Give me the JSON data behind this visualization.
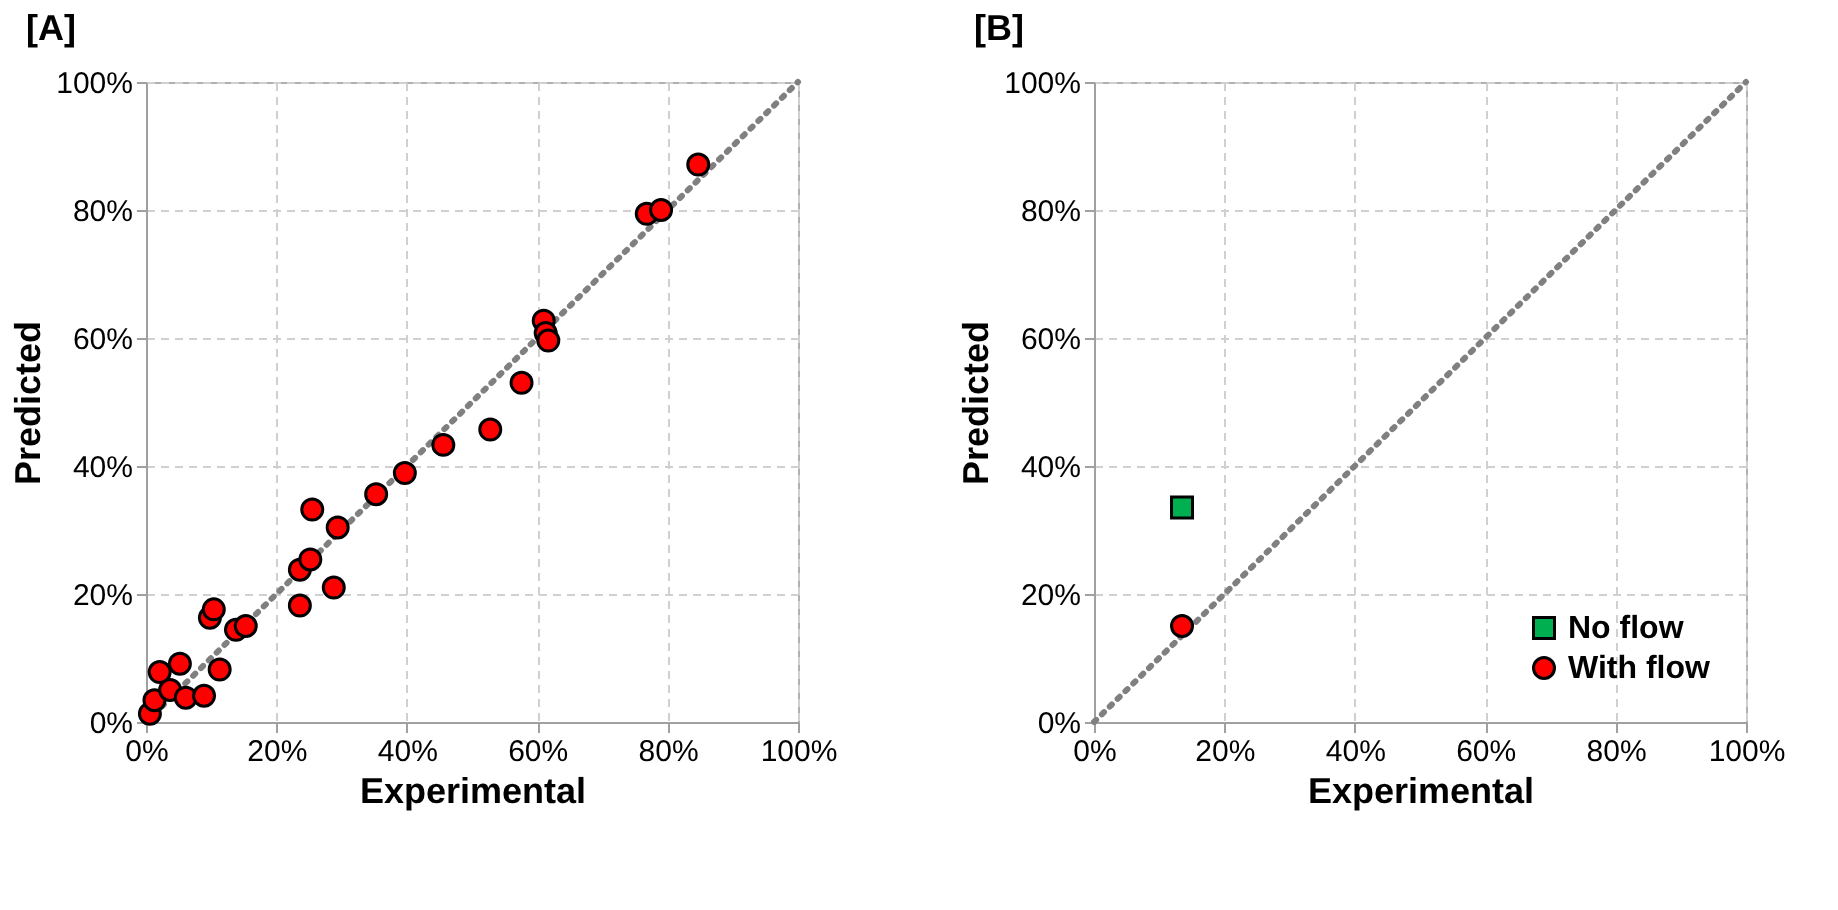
{
  "chart_data": [
    {
      "type": "scatter",
      "title": "[A]",
      "xlabel": "Experimental",
      "ylabel": "Predicted",
      "xlim": [
        0,
        100
      ],
      "ylim": [
        0,
        100
      ],
      "xticks": [
        {
          "value": 0,
          "label": "0%"
        },
        {
          "value": 20,
          "label": "20%"
        },
        {
          "value": 40,
          "label": "40%"
        },
        {
          "value": 60,
          "label": "60%"
        },
        {
          "value": 80,
          "label": "80%"
        },
        {
          "value": 100,
          "label": "100%"
        }
      ],
      "yticks": [
        {
          "value": 0,
          "label": "0%"
        },
        {
          "value": 20,
          "label": "20%"
        },
        {
          "value": 40,
          "label": "40%"
        },
        {
          "value": 60,
          "label": "60%"
        },
        {
          "value": 80,
          "label": "80%"
        },
        {
          "value": 100,
          "label": "100%"
        }
      ],
      "grid": true,
      "series": [
        {
          "type": "line",
          "color": "#808080",
          "line_style": "dotted",
          "marker": "none",
          "x": [
            0,
            100
          ],
          "values": [
            0,
            100
          ]
        },
        {
          "type": "scatter",
          "color": "#ff0000",
          "marker": "circle",
          "x": [
            0.6,
            1.3,
            2.1,
            3.7,
            5.2,
            6.1,
            8.9,
            11.3,
            9.8,
            10.4,
            13.8,
            15.3,
            23.6,
            28.8,
            23.6,
            25.2,
            29.4,
            25.5,
            35.3,
            39.7,
            45.6,
            52.8,
            57.6,
            61.0,
            61.3,
            61.7,
            76.8,
            79.0,
            84.7
          ],
          "values": [
            1.3,
            3.4,
            7.8,
            5.0,
            9.1,
            3.8,
            4.1,
            8.2,
            16.3,
            17.6,
            14.4,
            15.0,
            18.2,
            21.0,
            23.8,
            25.4,
            30.4,
            33.2,
            35.6,
            38.9,
            43.3,
            45.7,
            53.0,
            62.7,
            60.8,
            59.6,
            79.4,
            80.0,
            87.1
          ]
        }
      ]
    },
    {
      "type": "scatter",
      "title": "[B]",
      "xlabel": "Experimental",
      "ylabel": "Predicted",
      "xlim": [
        0,
        100
      ],
      "ylim": [
        0,
        100
      ],
      "xticks": [
        {
          "value": 0,
          "label": "0%"
        },
        {
          "value": 20,
          "label": "20%"
        },
        {
          "value": 40,
          "label": "40%"
        },
        {
          "value": 60,
          "label": "60%"
        },
        {
          "value": 80,
          "label": "80%"
        },
        {
          "value": 100,
          "label": "100%"
        }
      ],
      "yticks": [
        {
          "value": 0,
          "label": "0%"
        },
        {
          "value": 20,
          "label": "20%"
        },
        {
          "value": 40,
          "label": "40%"
        },
        {
          "value": 60,
          "label": "60%"
        },
        {
          "value": 80,
          "label": "80%"
        },
        {
          "value": 100,
          "label": "100%"
        }
      ],
      "grid": true,
      "legend": "bottom right",
      "series": [
        {
          "type": "line",
          "color": "#808080",
          "line_style": "dotted",
          "marker": "none",
          "x": [
            0,
            100
          ],
          "values": [
            0,
            100
          ]
        },
        {
          "type": "scatter",
          "name": "No flow",
          "color": "#00b050",
          "marker": "square",
          "x": [
            13.5
          ],
          "values": [
            33.5
          ]
        },
        {
          "type": "scatter",
          "name": "With flow",
          "color": "#ff0000",
          "marker": "circle",
          "x": [
            13.5
          ],
          "values": [
            15.0
          ]
        }
      ]
    }
  ]
}
